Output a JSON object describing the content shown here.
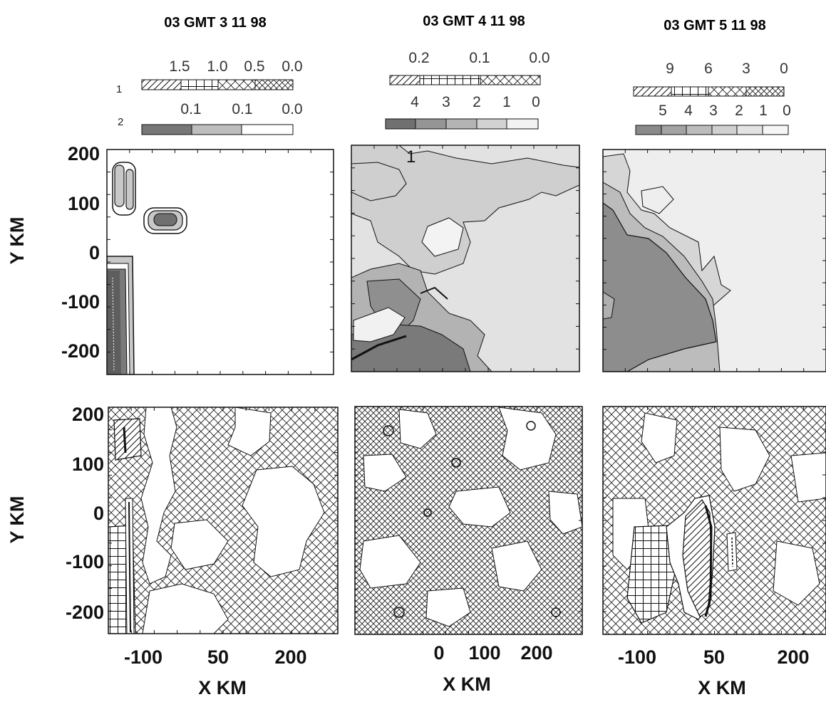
{
  "chart_data": [
    {
      "type": "heatmap",
      "title": "03 GMT 3 11 98",
      "legend": {
        "row1_label": "1",
        "row1_values": [
          "1.5",
          "1.0",
          "0.5",
          "0.0"
        ],
        "row2_label": "2",
        "row2_values": [
          "0.1",
          "0.1",
          "0.0"
        ]
      },
      "xlabel": "X KM",
      "ylabel": "Y KM",
      "xticks": [
        "-100",
        "50",
        "200"
      ],
      "yticks": [
        "200",
        "100",
        "0",
        "-100",
        "-200"
      ],
      "top_panel_levels": [
        "0.1",
        "0.1",
        "0.0"
      ],
      "bottom_panel_levels": [
        "1.5",
        "1.0",
        "0.5",
        "0.0"
      ]
    },
    {
      "type": "heatmap",
      "title": "03 GMT 4 11 98",
      "legend": {
        "row1_values": [
          "0.2",
          "0.1",
          "0.0"
        ],
        "row2_values": [
          "4",
          "3",
          "2",
          "1",
          "0"
        ]
      },
      "xlabel": "X KM",
      "xticks": [
        "0",
        "100",
        "200"
      ],
      "annotation": "1",
      "top_panel_levels": [
        "4",
        "3",
        "2",
        "1",
        "0"
      ],
      "bottom_panel_levels": [
        "0.2",
        "0.1",
        "0.0"
      ]
    },
    {
      "type": "heatmap",
      "title": "03 GMT 5 11 98",
      "legend": {
        "row1_values": [
          "9",
          "6",
          "3",
          "0"
        ],
        "row2_values": [
          "5",
          "4",
          "3",
          "2",
          "1",
          "0"
        ]
      },
      "xlabel": "X KM",
      "xticks": [
        "-100",
        "50",
        "200"
      ],
      "top_panel_levels": [
        "5",
        "4",
        "3",
        "2",
        "1",
        "0"
      ],
      "bottom_panel_levels": [
        "9",
        "6",
        "3",
        "0"
      ]
    }
  ],
  "colors": {
    "gray_levels": [
      "#6f6f6f",
      "#8e8e8e",
      "#a8a8a8",
      "#c0c0c0",
      "#d8d8d8",
      "#eeeeee"
    ],
    "line": "#111111",
    "background": "#ffffff"
  },
  "hatch_patterns": [
    "diagonal-lines",
    "grid-squares",
    "cross-hatch",
    "fine-cross-hatch"
  ]
}
